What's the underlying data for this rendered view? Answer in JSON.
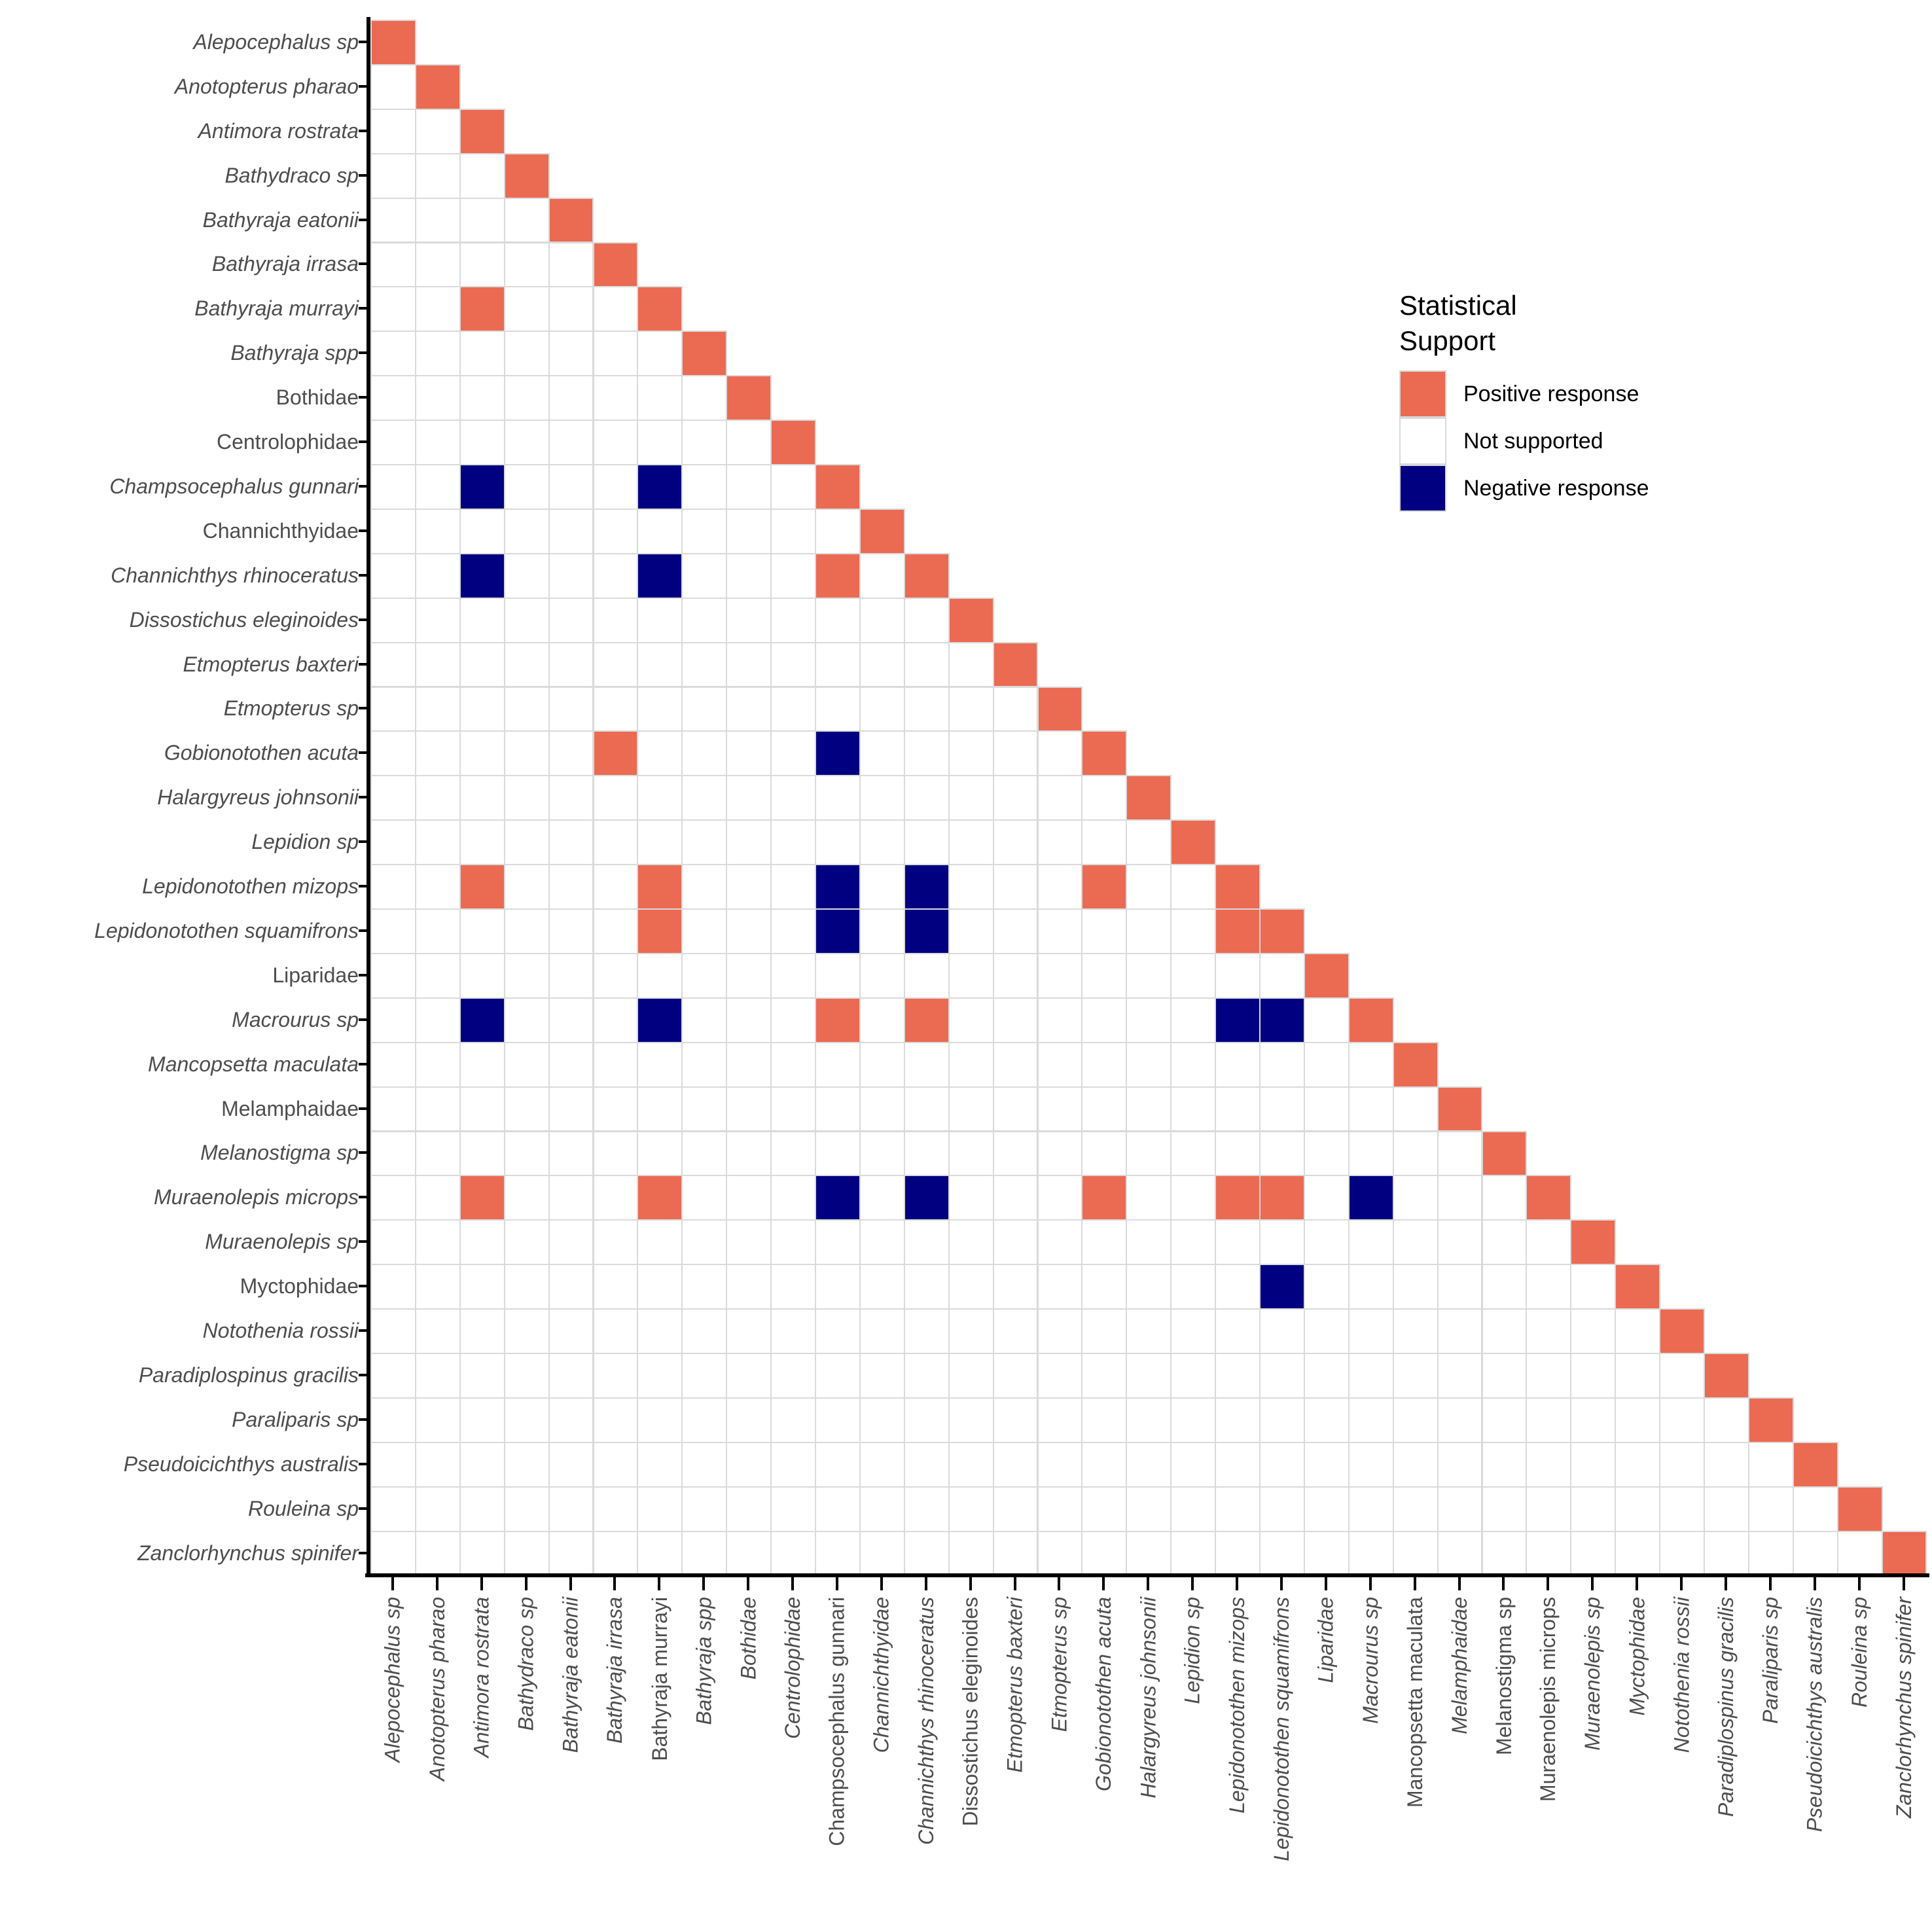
{
  "legend": {
    "title_lines": [
      "Statistical",
      "Support"
    ],
    "items": [
      {
        "label": "Positive response",
        "color": "#EB6A52"
      },
      {
        "label": "Not supported",
        "color": "#FFFFFF"
      },
      {
        "label": "Negative response",
        "color": "#000080"
      }
    ]
  },
  "colors": {
    "positive": "#EB6A52",
    "negative": "#000080",
    "not_supported": "#FFFFFF",
    "tile_border": "#DADADA",
    "axis_line": "#000000",
    "tick_label": "#4D4D4D",
    "legend_text": "#000000",
    "background": "#FFFFFF"
  },
  "y_axis": {
    "labels": [
      {
        "text": "Alepocephalus sp",
        "italic": true
      },
      {
        "text": "Anotopterus pharao",
        "italic": true
      },
      {
        "text": "Antimora rostrata",
        "italic": true
      },
      {
        "text": "Bathydraco sp",
        "italic": true
      },
      {
        "text": "Bathyraja eatonii",
        "italic": true
      },
      {
        "text": "Bathyraja irrasa",
        "italic": true
      },
      {
        "text": "Bathyraja murrayi",
        "italic": true
      },
      {
        "text": "Bathyraja spp",
        "italic": true
      },
      {
        "text": "Bothidae",
        "italic": false
      },
      {
        "text": "Centrolophidae",
        "italic": false
      },
      {
        "text": "Champsocephalus gunnari",
        "italic": true
      },
      {
        "text": "Channichthyidae",
        "italic": false
      },
      {
        "text": "Channichthys rhinoceratus",
        "italic": true
      },
      {
        "text": "Dissostichus eleginoides",
        "italic": true
      },
      {
        "text": "Etmopterus baxteri",
        "italic": true
      },
      {
        "text": "Etmopterus sp",
        "italic": true
      },
      {
        "text": "Gobionotothen acuta",
        "italic": true
      },
      {
        "text": "Halargyreus johnsonii",
        "italic": true
      },
      {
        "text": "Lepidion sp",
        "italic": true
      },
      {
        "text": "Lepidonotothen mizops",
        "italic": true
      },
      {
        "text": "Lepidonotothen squamifrons",
        "italic": true
      },
      {
        "text": "Liparidae",
        "italic": false
      },
      {
        "text": "Macrourus sp",
        "italic": true
      },
      {
        "text": "Mancopsetta maculata",
        "italic": true
      },
      {
        "text": "Melamphaidae",
        "italic": false
      },
      {
        "text": "Melanostigma sp",
        "italic": true
      },
      {
        "text": "Muraenolepis microps",
        "italic": true
      },
      {
        "text": "Muraenolepis sp",
        "italic": true
      },
      {
        "text": "Myctophidae",
        "italic": false
      },
      {
        "text": "Notothenia rossii",
        "italic": true
      },
      {
        "text": "Paradiplospinus gracilis",
        "italic": true
      },
      {
        "text": "Paraliparis sp",
        "italic": true
      },
      {
        "text": "Pseudoicichthys australis",
        "italic": true
      },
      {
        "text": "Rouleina sp",
        "italic": true
      },
      {
        "text": "Zanclorhynchus spinifer",
        "italic": true
      }
    ]
  },
  "x_axis": {
    "labels": [
      {
        "text": "Alepocephalus sp",
        "italic": true
      },
      {
        "text": "Anotopterus pharao",
        "italic": true
      },
      {
        "text": "Antimora rostrata",
        "italic": true
      },
      {
        "text": "Bathydraco sp",
        "italic": true
      },
      {
        "text": "Bathyraja eatonii",
        "italic": true
      },
      {
        "text": "Bathyraja irrasa",
        "italic": true
      },
      {
        "text": "Bathyraja murrayi",
        "italic": false
      },
      {
        "text": "Bathyraja spp",
        "italic": true
      },
      {
        "text": "Bothidae",
        "italic": true
      },
      {
        "text": "Centrolophidae",
        "italic": true
      },
      {
        "text": "Champsocephalus gunnari",
        "italic": false
      },
      {
        "text": "Channichthyidae",
        "italic": true
      },
      {
        "text": "Channichthys rhinoceratus",
        "italic": true
      },
      {
        "text": "Dissostichus eleginoides",
        "italic": false
      },
      {
        "text": "Etmopterus baxteri",
        "italic": true
      },
      {
        "text": "Etmopterus sp",
        "italic": true
      },
      {
        "text": "Gobionotothen acuta",
        "italic": true
      },
      {
        "text": "Halargyreus johnsonii",
        "italic": true
      },
      {
        "text": "Lepidion sp",
        "italic": true
      },
      {
        "text": "Lepidonotothen mizops",
        "italic": true
      },
      {
        "text": "Lepidonotothen squamifrons",
        "italic": true
      },
      {
        "text": "Liparidae",
        "italic": true
      },
      {
        "text": "Macrourus sp",
        "italic": true
      },
      {
        "text": "Mancopsetta maculata",
        "italic": false
      },
      {
        "text": "Melamphaidae",
        "italic": true
      },
      {
        "text": "Melanostigma sp",
        "italic": false
      },
      {
        "text": "Muraenolepis microps",
        "italic": false
      },
      {
        "text": "Muraenolepis sp",
        "italic": true
      },
      {
        "text": "Myctophidae",
        "italic": true
      },
      {
        "text": "Notothenia rossii",
        "italic": true
      },
      {
        "text": "Paradiplospinus gracilis",
        "italic": true
      },
      {
        "text": "Paraliparis sp",
        "italic": true
      },
      {
        "text": "Pseudoicichthys australis",
        "italic": true
      },
      {
        "text": "Rouleina sp",
        "italic": true
      },
      {
        "text": "Zanclorhynchus spinifer",
        "italic": true
      }
    ]
  },
  "chart_data": {
    "type": "heatmap",
    "subtype": "lower-triangle-species-matrix",
    "title": "",
    "legend_title": "Statistical Support",
    "legend_position": "inside-top-right",
    "grid": "tile-borders-only",
    "value_levels": [
      "Positive response",
      "Not supported",
      "Negative response"
    ],
    "categories": [
      "Alepocephalus sp",
      "Anotopterus pharao",
      "Antimora rostrata",
      "Bathydraco sp",
      "Bathyraja eatonii",
      "Bathyraja irrasa",
      "Bathyraja murrayi",
      "Bathyraja spp",
      "Bothidae",
      "Centrolophidae",
      "Champsocephalus gunnari",
      "Channichthyidae",
      "Channichthys rhinoceratus",
      "Dissostichus eleginoides",
      "Etmopterus baxteri",
      "Etmopterus sp",
      "Gobionotothen acuta",
      "Halargyreus johnsonii",
      "Lepidion sp",
      "Lepidonotothen mizops",
      "Lepidonotothen squamifrons",
      "Liparidae",
      "Macrourus sp",
      "Mancopsetta maculata",
      "Melamphaidae",
      "Melanostigma sp",
      "Muraenolepis microps",
      "Muraenolepis sp",
      "Myctophidae",
      "Notothenia rossii",
      "Paradiplospinus gracilis",
      "Paraliparis sp",
      "Pseudoicichthys australis",
      "Rouleina sp",
      "Zanclorhynchus spinifer"
    ],
    "n": 35,
    "diagonal_value": "positive",
    "default_lower_triangle_value": "not_supported",
    "cells": [
      {
        "row": 7,
        "col": 3,
        "value": "positive"
      },
      {
        "row": 11,
        "col": 3,
        "value": "negative"
      },
      {
        "row": 11,
        "col": 7,
        "value": "negative"
      },
      {
        "row": 13,
        "col": 3,
        "value": "negative"
      },
      {
        "row": 13,
        "col": 7,
        "value": "negative"
      },
      {
        "row": 13,
        "col": 11,
        "value": "positive"
      },
      {
        "row": 17,
        "col": 6,
        "value": "positive"
      },
      {
        "row": 17,
        "col": 11,
        "value": "negative"
      },
      {
        "row": 20,
        "col": 3,
        "value": "positive"
      },
      {
        "row": 20,
        "col": 7,
        "value": "positive"
      },
      {
        "row": 20,
        "col": 11,
        "value": "negative"
      },
      {
        "row": 20,
        "col": 13,
        "value": "negative"
      },
      {
        "row": 20,
        "col": 17,
        "value": "positive"
      },
      {
        "row": 21,
        "col": 7,
        "value": "positive"
      },
      {
        "row": 21,
        "col": 11,
        "value": "negative"
      },
      {
        "row": 21,
        "col": 13,
        "value": "negative"
      },
      {
        "row": 21,
        "col": 20,
        "value": "positive"
      },
      {
        "row": 23,
        "col": 3,
        "value": "negative"
      },
      {
        "row": 23,
        "col": 7,
        "value": "negative"
      },
      {
        "row": 23,
        "col": 11,
        "value": "positive"
      },
      {
        "row": 23,
        "col": 13,
        "value": "positive"
      },
      {
        "row": 23,
        "col": 20,
        "value": "negative"
      },
      {
        "row": 23,
        "col": 21,
        "value": "negative"
      },
      {
        "row": 27,
        "col": 3,
        "value": "positive"
      },
      {
        "row": 27,
        "col": 7,
        "value": "positive"
      },
      {
        "row": 27,
        "col": 11,
        "value": "negative"
      },
      {
        "row": 27,
        "col": 13,
        "value": "negative"
      },
      {
        "row": 27,
        "col": 17,
        "value": "positive"
      },
      {
        "row": 27,
        "col": 20,
        "value": "positive"
      },
      {
        "row": 27,
        "col": 21,
        "value": "positive"
      },
      {
        "row": 27,
        "col": 23,
        "value": "negative"
      },
      {
        "row": 29,
        "col": 21,
        "value": "negative"
      }
    ]
  }
}
